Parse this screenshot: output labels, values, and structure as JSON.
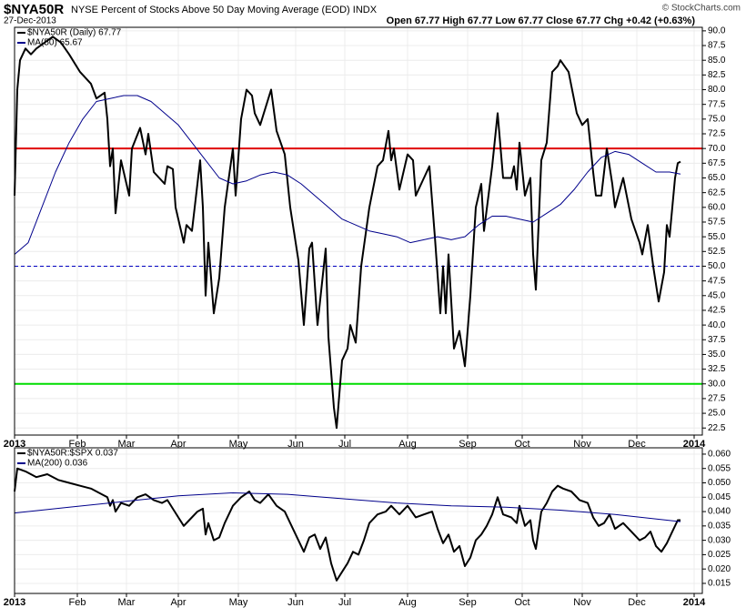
{
  "chart_data": [
    {
      "type": "line",
      "title": "$NYA50R",
      "subtitle": "NYSE Percent of Stocks Above 50 Day Moving Average (EOD) INDX",
      "date": "27-Dec-2013",
      "quote": "Open 67.77  High 67.77  Low 67.77  Close 67.77  Chg +0.42 (+0.63%)",
      "credit": "© StockCharts.com",
      "xlim": [
        0,
        252
      ],
      "xticks": [
        {
          "value": 0,
          "label": "2013"
        },
        {
          "value": 23,
          "label": "Feb"
        },
        {
          "value": 41,
          "label": "Mar"
        },
        {
          "value": 60,
          "label": "Apr"
        },
        {
          "value": 82,
          "label": "May"
        },
        {
          "value": 103,
          "label": "Jun"
        },
        {
          "value": 121,
          "label": "Jul"
        },
        {
          "value": 144,
          "label": "Aug"
        },
        {
          "value": 166,
          "label": "Sep"
        },
        {
          "value": 186,
          "label": "Oct"
        },
        {
          "value": 208,
          "label": "Nov"
        },
        {
          "value": 228,
          "label": "Dec"
        },
        {
          "value": 249,
          "label": "2014"
        }
      ],
      "ylim": [
        21.3,
        90.6
      ],
      "yticks": [
        {
          "value": 22.5,
          "label": "22.5"
        },
        {
          "value": 25,
          "label": "25.0"
        },
        {
          "value": 27.5,
          "label": "27.5"
        },
        {
          "value": 30,
          "label": "30.0"
        },
        {
          "value": 32.5,
          "label": "32.5"
        },
        {
          "value": 35,
          "label": "35.0"
        },
        {
          "value": 37.5,
          "label": "37.5"
        },
        {
          "value": 40,
          "label": "40.0"
        },
        {
          "value": 42.5,
          "label": "42.5"
        },
        {
          "value": 45,
          "label": "45.0"
        },
        {
          "value": 47.5,
          "label": "47.5"
        },
        {
          "value": 50,
          "label": "50.0"
        },
        {
          "value": 52.5,
          "label": "52.5"
        },
        {
          "value": 55,
          "label": "55.0"
        },
        {
          "value": 57.5,
          "label": "57.5"
        },
        {
          "value": 60,
          "label": "60.0"
        },
        {
          "value": 62.5,
          "label": "62.5"
        },
        {
          "value": 65,
          "label": "65.0"
        },
        {
          "value": 67.5,
          "label": "67.5"
        },
        {
          "value": 70,
          "label": "70.0"
        },
        {
          "value": 72.5,
          "label": "72.5"
        },
        {
          "value": 75,
          "label": "75.0"
        },
        {
          "value": 77.5,
          "label": "77.5"
        },
        {
          "value": 80,
          "label": "80.0"
        },
        {
          "value": 82.5,
          "label": "82.5"
        },
        {
          "value": 85,
          "label": "85.0"
        },
        {
          "value": 87.5,
          "label": "87.5"
        },
        {
          "value": 90,
          "label": "90.0"
        }
      ],
      "grid": true,
      "reference_lines": [
        {
          "value": 70,
          "color": "#e00000",
          "style": "solid"
        },
        {
          "value": 50,
          "color": "#0000c0",
          "style": "dashed"
        },
        {
          "value": 30,
          "color": "#00dd00",
          "style": "solid"
        }
      ],
      "series": [
        {
          "name": "$NYA50R (Daily) 67.77",
          "color": "#000000",
          "width": 2,
          "x": [
            0,
            1,
            2,
            4,
            6,
            8,
            11,
            14,
            17,
            20,
            24,
            28,
            30,
            33,
            34,
            35,
            36,
            37,
            39,
            42,
            43,
            46,
            48,
            49,
            51,
            53,
            55,
            56,
            58,
            59,
            62,
            63,
            65,
            68,
            69,
            70,
            71,
            73,
            75,
            77,
            80,
            81,
            83,
            85,
            87,
            88,
            90,
            94,
            96,
            99,
            101,
            104,
            106,
            108,
            109,
            111,
            114,
            115,
            117,
            118,
            120,
            122,
            123,
            125,
            127,
            130,
            133,
            135,
            137,
            138,
            139,
            141,
            144,
            146,
            147,
            150,
            152,
            154,
            156,
            157,
            158,
            159,
            161,
            163,
            165,
            167,
            169,
            171,
            172,
            175,
            177,
            179,
            182,
            183,
            184,
            185,
            187,
            189,
            190,
            191,
            193,
            195,
            197,
            199,
            200,
            203,
            206,
            208,
            210,
            212,
            213,
            215,
            217,
            219,
            220,
            223,
            226,
            229,
            230,
            232,
            234,
            236,
            238,
            239,
            240,
            242,
            243,
            244
          ],
          "values": [
            62,
            80,
            85,
            87,
            86,
            87,
            88,
            89,
            88,
            86,
            83,
            81,
            78.5,
            79.5,
            75,
            67,
            70,
            59,
            68,
            62,
            70,
            73.5,
            69,
            72.5,
            66,
            65,
            64,
            67,
            66.5,
            60,
            54,
            57,
            56,
            68,
            60,
            45,
            54,
            42,
            48,
            60,
            70,
            62,
            75,
            80,
            79,
            76,
            74,
            80,
            73,
            69,
            60,
            51,
            40,
            53,
            54,
            40,
            53,
            38,
            26,
            22.5,
            34,
            36,
            40,
            37,
            50,
            60,
            67,
            68,
            73,
            68,
            70,
            63,
            69,
            68,
            62,
            65,
            67,
            55,
            42,
            50,
            42,
            52,
            36,
            39,
            33,
            45,
            60,
            64,
            56,
            67,
            76,
            65,
            65,
            67,
            63,
            71,
            62,
            65,
            52,
            46,
            68,
            71,
            83,
            84,
            85,
            83,
            76,
            74,
            75,
            66,
            62,
            62,
            70,
            64,
            60,
            65,
            58,
            54,
            52,
            57,
            50,
            44,
            49,
            57,
            55,
            65,
            67.5,
            67.77
          ]
        },
        {
          "name": "MA(50) 65.67",
          "color": "#00008b",
          "width": 1,
          "x": [
            0,
            5,
            10,
            15,
            20,
            25,
            30,
            35,
            40,
            45,
            50,
            55,
            60,
            65,
            70,
            75,
            80,
            85,
            90,
            95,
            100,
            105,
            110,
            115,
            120,
            125,
            130,
            135,
            140,
            145,
            150,
            155,
            160,
            165,
            170,
            175,
            180,
            185,
            190,
            195,
            200,
            205,
            210,
            215,
            220,
            225,
            230,
            235,
            240,
            244
          ],
          "values": [
            52,
            54,
            60,
            66,
            71,
            75,
            78,
            78.5,
            79,
            79,
            78,
            76,
            74,
            71,
            68,
            65,
            64,
            64.5,
            65.5,
            66,
            65.5,
            64,
            62,
            60,
            58,
            57,
            56,
            55.5,
            55,
            54,
            54.5,
            55,
            54.5,
            55,
            57,
            58.5,
            58.5,
            58,
            57.5,
            59,
            60.5,
            63,
            66,
            68.5,
            69.5,
            69,
            67.5,
            66,
            66,
            65.67
          ]
        }
      ]
    },
    {
      "type": "line",
      "xlim": [
        0,
        252
      ],
      "xticks": [
        {
          "value": 0,
          "label": "2013"
        },
        {
          "value": 23,
          "label": "Feb"
        },
        {
          "value": 41,
          "label": "Mar"
        },
        {
          "value": 60,
          "label": "Apr"
        },
        {
          "value": 82,
          "label": "May"
        },
        {
          "value": 103,
          "label": "Jun"
        },
        {
          "value": 121,
          "label": "Jul"
        },
        {
          "value": 144,
          "label": "Aug"
        },
        {
          "value": 166,
          "label": "Sep"
        },
        {
          "value": 186,
          "label": "Oct"
        },
        {
          "value": 208,
          "label": "Nov"
        },
        {
          "value": 228,
          "label": "Dec"
        },
        {
          "value": 249,
          "label": "2014"
        }
      ],
      "ylim": [
        0.0115,
        0.0622
      ],
      "yticks": [
        {
          "value": 0.015,
          "label": "0.015"
        },
        {
          "value": 0.02,
          "label": "0.020"
        },
        {
          "value": 0.025,
          "label": "0.025"
        },
        {
          "value": 0.03,
          "label": "0.030"
        },
        {
          "value": 0.035,
          "label": "0.035"
        },
        {
          "value": 0.04,
          "label": "0.040"
        },
        {
          "value": 0.045,
          "label": "0.045"
        },
        {
          "value": 0.05,
          "label": "0.050"
        },
        {
          "value": 0.055,
          "label": "0.055"
        },
        {
          "value": 0.06,
          "label": "0.060"
        }
      ],
      "grid": true,
      "series": [
        {
          "name": "$NYA50R:$SPX  0.037",
          "color": "#000000",
          "width": 2,
          "x": [
            0,
            1,
            4,
            8,
            12,
            16,
            20,
            24,
            28,
            32,
            34,
            35,
            36,
            37,
            39,
            42,
            45,
            48,
            51,
            54,
            56,
            58,
            60,
            62,
            64,
            67,
            69,
            70,
            71,
            73,
            75,
            77,
            80,
            83,
            86,
            88,
            90,
            93,
            96,
            99,
            101,
            104,
            106,
            108,
            110,
            112,
            114,
            116,
            118,
            120,
            122,
            124,
            126,
            128,
            130,
            133,
            136,
            138,
            141,
            144,
            147,
            150,
            153,
            155,
            157,
            159,
            161,
            163,
            165,
            167,
            169,
            171,
            173,
            175,
            177,
            179,
            182,
            184,
            185,
            187,
            189,
            190,
            191,
            193,
            195,
            197,
            199,
            201,
            204,
            207,
            210,
            212,
            214,
            216,
            218,
            220,
            223,
            226,
            229,
            231,
            233,
            235,
            237,
            239,
            241,
            243,
            244
          ],
          "values": [
            0.047,
            0.055,
            0.054,
            0.052,
            0.053,
            0.051,
            0.05,
            0.049,
            0.048,
            0.046,
            0.045,
            0.042,
            0.044,
            0.04,
            0.043,
            0.042,
            0.045,
            0.046,
            0.044,
            0.043,
            0.044,
            0.041,
            0.038,
            0.035,
            0.037,
            0.04,
            0.041,
            0.032,
            0.036,
            0.03,
            0.031,
            0.036,
            0.042,
            0.045,
            0.047,
            0.044,
            0.043,
            0.046,
            0.042,
            0.04,
            0.036,
            0.03,
            0.026,
            0.031,
            0.032,
            0.027,
            0.031,
            0.022,
            0.016,
            0.019,
            0.022,
            0.026,
            0.025,
            0.03,
            0.036,
            0.039,
            0.04,
            0.042,
            0.039,
            0.042,
            0.038,
            0.039,
            0.04,
            0.034,
            0.029,
            0.032,
            0.026,
            0.028,
            0.021,
            0.024,
            0.03,
            0.032,
            0.035,
            0.039,
            0.045,
            0.039,
            0.038,
            0.036,
            0.042,
            0.035,
            0.037,
            0.03,
            0.027,
            0.04,
            0.043,
            0.047,
            0.049,
            0.048,
            0.047,
            0.044,
            0.043,
            0.038,
            0.035,
            0.036,
            0.039,
            0.034,
            0.036,
            0.033,
            0.03,
            0.031,
            0.033,
            0.028,
            0.026,
            0.029,
            0.033,
            0.037,
            0.037
          ]
        },
        {
          "name": "MA(200) 0.036",
          "color": "#00008b",
          "width": 1,
          "x": [
            0,
            20,
            40,
            60,
            80,
            100,
            120,
            140,
            160,
            180,
            200,
            220,
            244
          ],
          "values": [
            0.0395,
            0.0415,
            0.0435,
            0.0455,
            0.0465,
            0.046,
            0.0445,
            0.043,
            0.042,
            0.0415,
            0.0405,
            0.039,
            0.0365
          ]
        }
      ]
    }
  ]
}
